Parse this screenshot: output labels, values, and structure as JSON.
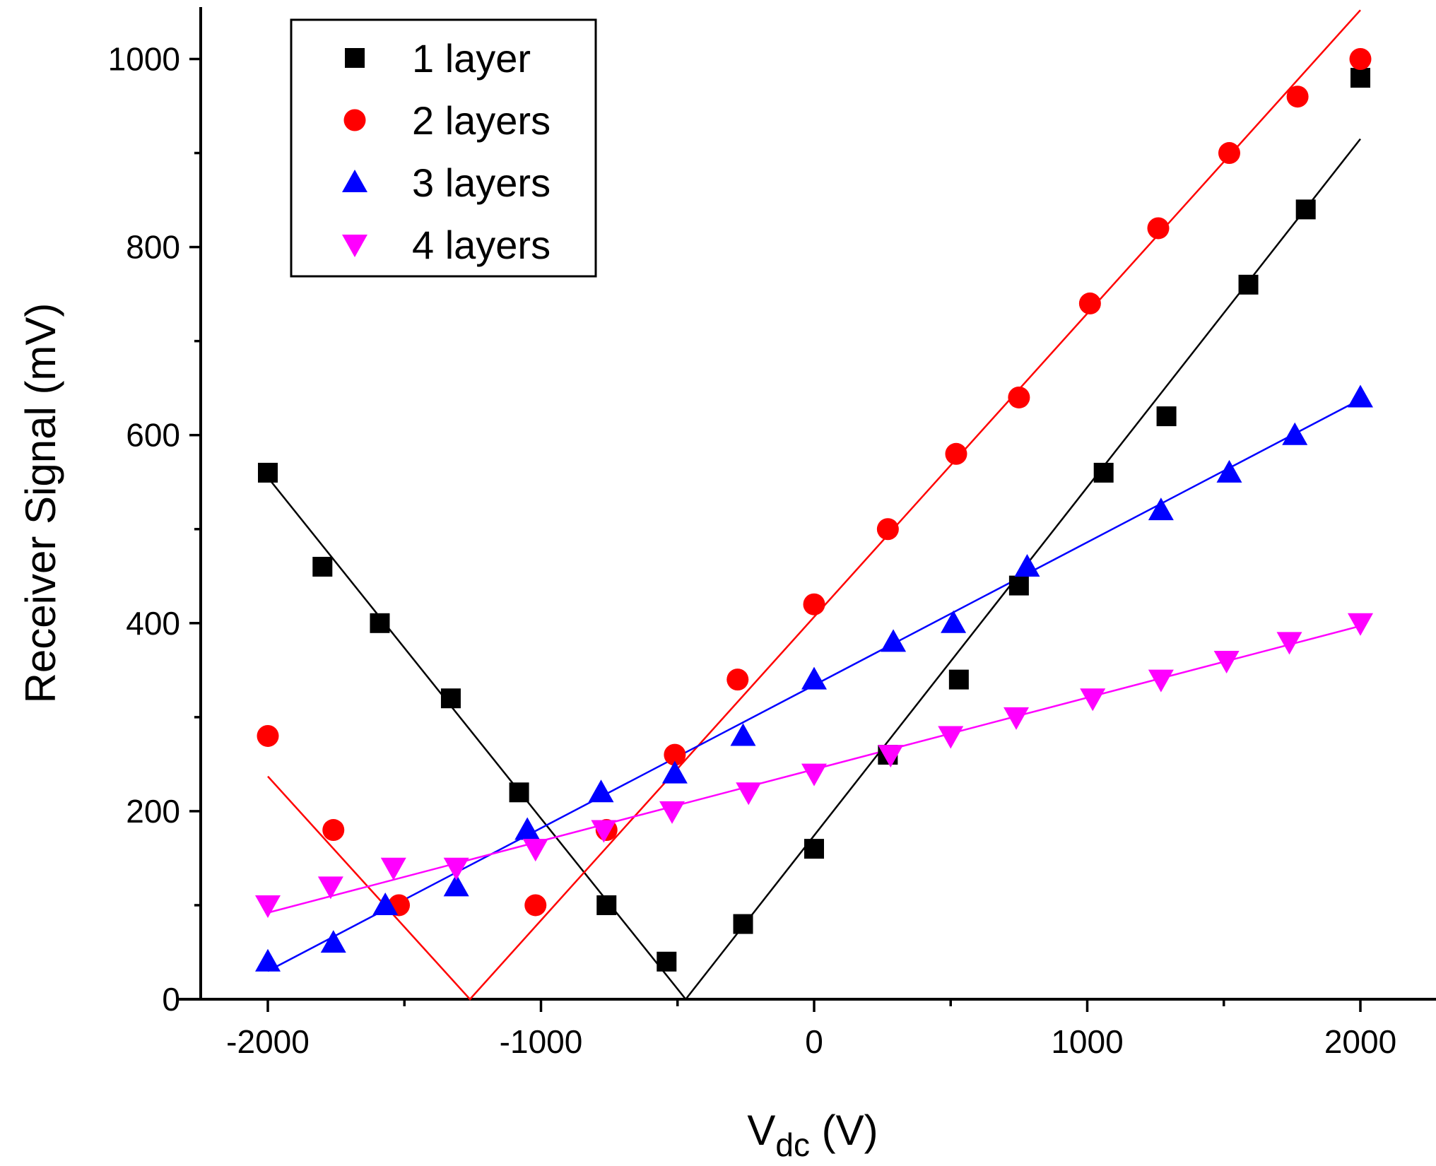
{
  "chart_data": {
    "type": "scatter",
    "title": "",
    "xlabel_main": "V",
    "xlabel_sub": "dc",
    "xlabel_unit": " (V)",
    "ylabel": "Receiver Signal (mV)",
    "xlim": [
      -2300,
      2300
    ],
    "ylim": [
      0,
      1050
    ],
    "xticks": [
      -2000,
      -1000,
      0,
      1000,
      2000
    ],
    "xtick_labels": [
      "-2000",
      "-1000",
      "0",
      "1000",
      "2000"
    ],
    "xminor": [
      -1500,
      -500,
      500,
      1500
    ],
    "yticks": [
      0,
      200,
      400,
      600,
      800,
      1000
    ],
    "ytick_labels": [
      "0",
      "200",
      "400",
      "600",
      "800",
      "1000"
    ],
    "yminor": [
      100,
      300,
      500,
      700,
      900
    ],
    "legend_position": "top-left",
    "series": [
      {
        "name": "1 layer",
        "marker": "square",
        "color": "#000000",
        "points": [
          [
            -2000,
            560
          ],
          [
            -1800,
            460
          ],
          [
            -1590,
            400
          ],
          [
            -1330,
            320
          ],
          [
            -1080,
            220
          ],
          [
            -760,
            100
          ],
          [
            -540,
            40
          ],
          [
            -260,
            80
          ],
          [
            0,
            160
          ],
          [
            270,
            260
          ],
          [
            530,
            340
          ],
          [
            750,
            440
          ],
          [
            1060,
            560
          ],
          [
            1290,
            620
          ],
          [
            1590,
            760
          ],
          [
            1800,
            840
          ],
          [
            2000,
            980
          ]
        ],
        "fit": [
          [
            -2000,
            555
          ],
          [
            -470,
            0
          ],
          [
            2000,
            915
          ]
        ]
      },
      {
        "name": "2 layers",
        "marker": "circle",
        "color": "#ff0000",
        "points": [
          [
            -2000,
            280
          ],
          [
            -1760,
            180
          ],
          [
            -1520,
            100
          ],
          [
            -1020,
            100
          ],
          [
            -760,
            180
          ],
          [
            -510,
            260
          ],
          [
            -280,
            340
          ],
          [
            0,
            420
          ],
          [
            270,
            500
          ],
          [
            520,
            580
          ],
          [
            750,
            640
          ],
          [
            1010,
            740
          ],
          [
            1260,
            820
          ],
          [
            1520,
            900
          ],
          [
            1770,
            960
          ],
          [
            2000,
            1000
          ]
        ],
        "fit": [
          [
            -2000,
            237
          ],
          [
            -1260,
            0
          ],
          [
            2000,
            1052
          ]
        ]
      },
      {
        "name": "3 layers",
        "marker": "triangle-up",
        "color": "#0000ff",
        "points": [
          [
            -2000,
            40
          ],
          [
            -1760,
            60
          ],
          [
            -1570,
            100
          ],
          [
            -1310,
            120
          ],
          [
            -1050,
            180
          ],
          [
            -780,
            220
          ],
          [
            -510,
            240
          ],
          [
            -260,
            280
          ],
          [
            0,
            340
          ],
          [
            290,
            380
          ],
          [
            510,
            400
          ],
          [
            780,
            460
          ],
          [
            1270,
            520
          ],
          [
            1520,
            560
          ],
          [
            1760,
            600
          ],
          [
            2000,
            640
          ]
        ],
        "fit": [
          [
            -2000,
            30
          ],
          [
            2000,
            638
          ]
        ]
      },
      {
        "name": "4 layers",
        "marker": "triangle-down",
        "color": "#ff00ff",
        "points": [
          [
            -2000,
            100
          ],
          [
            -1770,
            120
          ],
          [
            -1540,
            140
          ],
          [
            -1310,
            140
          ],
          [
            -1020,
            160
          ],
          [
            -770,
            180
          ],
          [
            -520,
            200
          ],
          [
            -240,
            220
          ],
          [
            0,
            240
          ],
          [
            280,
            260
          ],
          [
            500,
            280
          ],
          [
            740,
            300
          ],
          [
            1020,
            320
          ],
          [
            1270,
            340
          ],
          [
            1510,
            360
          ],
          [
            1740,
            380
          ],
          [
            2000,
            400
          ]
        ],
        "fit": [
          [
            -2000,
            92
          ],
          [
            2000,
            397
          ]
        ]
      }
    ]
  }
}
